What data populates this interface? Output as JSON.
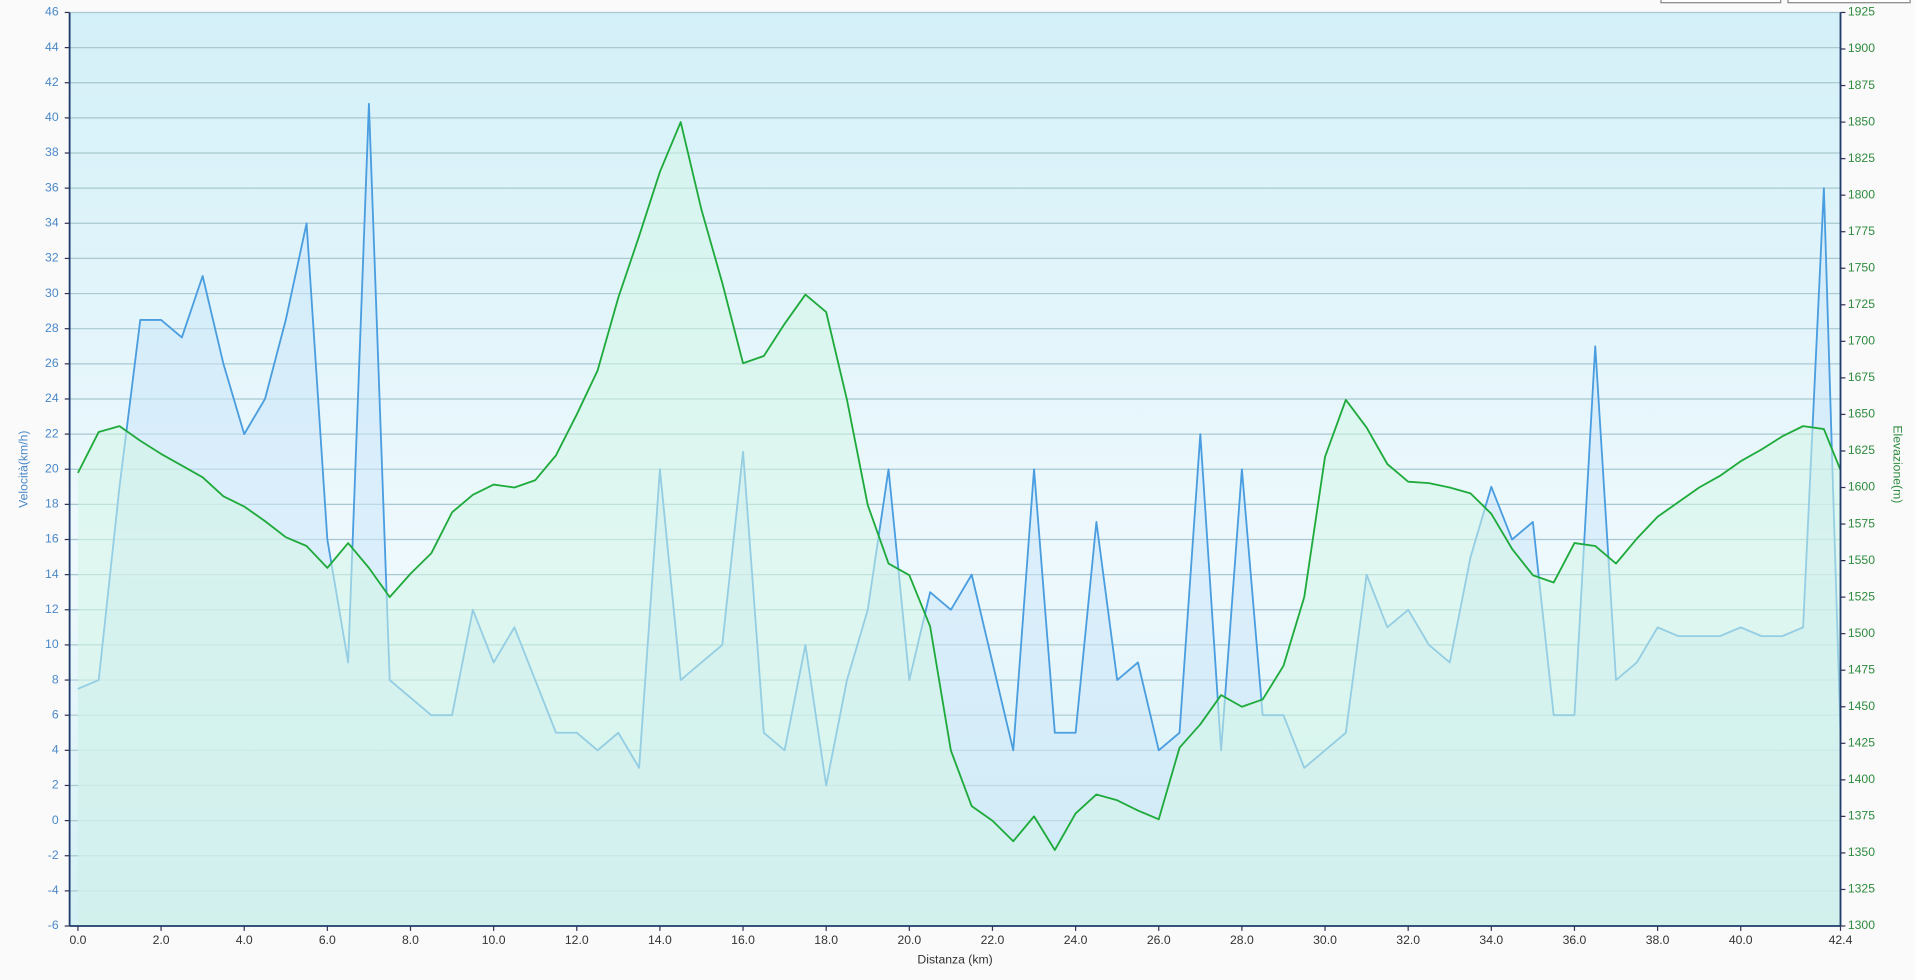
{
  "chart_data": {
    "type": "line",
    "xlabel": "Distanza  (km)",
    "ylabel": "Velocità(km/h)",
    "y2label": "Elevazione(m)",
    "x": [
      0,
      0.5,
      1,
      1.5,
      2,
      2.5,
      3,
      3.5,
      4,
      4.5,
      5,
      5.5,
      6,
      6.5,
      7,
      7.5,
      8,
      8.5,
      9,
      9.5,
      10,
      10.5,
      11,
      11.5,
      12,
      12.5,
      13,
      13.5,
      14,
      14.5,
      15,
      15.5,
      16,
      16.5,
      17,
      17.5,
      18,
      18.5,
      19,
      19.5,
      20,
      20.5,
      21,
      21.5,
      22,
      22.5,
      23,
      23.5,
      24,
      24.5,
      25,
      25.5,
      26,
      26.5,
      27,
      27.5,
      28,
      28.5,
      29,
      29.5,
      30,
      30.5,
      31,
      31.5,
      32,
      32.5,
      33,
      33.5,
      34,
      34.5,
      35,
      35.5,
      36,
      36.5,
      37,
      37.5,
      38,
      38.5,
      39,
      39.5,
      40,
      40.5,
      41,
      41.5,
      42,
      42.4
    ],
    "series": [
      {
        "color": "#4a9ee0",
        "fill": "#cce6fa",
        "values": [
          7.5,
          8,
          19,
          28.5,
          28.5,
          27.5,
          31,
          26,
          22,
          24,
          28.5,
          34,
          16,
          9,
          40.8,
          8,
          7,
          6,
          6,
          12,
          9,
          11,
          8,
          5,
          5,
          4,
          5,
          3,
          20,
          8,
          9,
          10,
          21,
          5,
          4,
          10,
          2,
          8,
          12,
          20,
          8,
          13,
          12,
          14,
          9,
          4,
          20,
          5,
          5,
          17,
          8,
          9,
          4,
          5,
          22,
          4,
          20,
          6,
          6,
          3,
          4,
          5,
          14,
          11,
          12,
          10,
          9,
          15,
          19,
          16,
          17,
          6,
          6,
          27,
          8,
          9,
          11,
          10.5,
          10.5,
          10.5,
          11,
          10.5,
          10.5,
          11,
          36,
          5
        ]
      },
      {
        "color": "#1faa3c",
        "fill": "#d4f5e6",
        "axis": "y2",
        "values": [
          1610,
          1638,
          1642,
          1632,
          1623,
          1615,
          1607,
          1594,
          1587,
          1577,
          1566,
          1560,
          1545,
          1562,
          1545,
          1525,
          1541,
          1555,
          1583,
          1595,
          1602,
          1600,
          1605,
          1622,
          1650,
          1680,
          1730,
          1772,
          1816,
          1850,
          1790,
          1740,
          1685,
          1690,
          1712,
          1732,
          1720,
          1660,
          1588,
          1548,
          1540,
          1505,
          1420,
          1382,
          1372,
          1358,
          1375,
          1352,
          1377,
          1390,
          1386,
          1379,
          1373,
          1422,
          1438,
          1458,
          1450,
          1455,
          1478,
          1525,
          1621,
          1660,
          1641,
          1616,
          1604,
          1603,
          1600,
          1596,
          1582,
          1558,
          1540,
          1535,
          1562,
          1560,
          1548,
          1565,
          1580,
          1590,
          1600,
          1608,
          1618,
          1626,
          1635,
          1642,
          1640,
          1612
        ]
      }
    ],
    "xlim": [
      -0.2,
      42.4
    ],
    "xticks": [
      {
        "value": 0,
        "label": "0.0"
      },
      {
        "value": 2,
        "label": "2.0"
      },
      {
        "value": 4,
        "label": "4.0"
      },
      {
        "value": 6,
        "label": "6.0"
      },
      {
        "value": 8,
        "label": "8.0"
      },
      {
        "value": 10,
        "label": "10.0"
      },
      {
        "value": 12,
        "label": "12.0"
      },
      {
        "value": 14,
        "label": "14.0"
      },
      {
        "value": 16,
        "label": "16.0"
      },
      {
        "value": 18,
        "label": "18.0"
      },
      {
        "value": 20,
        "label": "20.0"
      },
      {
        "value": 22,
        "label": "22.0"
      },
      {
        "value": 24,
        "label": "24.0"
      },
      {
        "value": 26,
        "label": "26.0"
      },
      {
        "value": 28,
        "label": "28.0"
      },
      {
        "value": 30,
        "label": "30.0"
      },
      {
        "value": 32,
        "label": "32.0"
      },
      {
        "value": 34,
        "label": "34.0"
      },
      {
        "value": 36,
        "label": "36.0"
      },
      {
        "value": 38,
        "label": "38.0"
      },
      {
        "value": 40,
        "label": "40.0"
      },
      {
        "value": 42.4,
        "label": "42.4"
      }
    ],
    "ylim": [
      -6,
      46
    ],
    "yticks": [
      -6,
      -4,
      -2,
      0,
      2,
      4,
      6,
      8,
      10,
      12,
      14,
      16,
      18,
      20,
      22,
      24,
      26,
      28,
      30,
      32,
      34,
      36,
      38,
      40,
      42,
      44,
      46
    ],
    "y2lim": [
      1300,
      1925
    ],
    "y2ticks": [
      1300,
      1325,
      1350,
      1375,
      1400,
      1425,
      1450,
      1475,
      1500,
      1525,
      1550,
      1575,
      1600,
      1625,
      1650,
      1675,
      1700,
      1725,
      1750,
      1775,
      1800,
      1825,
      1850,
      1875,
      1900,
      1925
    ],
    "grid": true
  }
}
